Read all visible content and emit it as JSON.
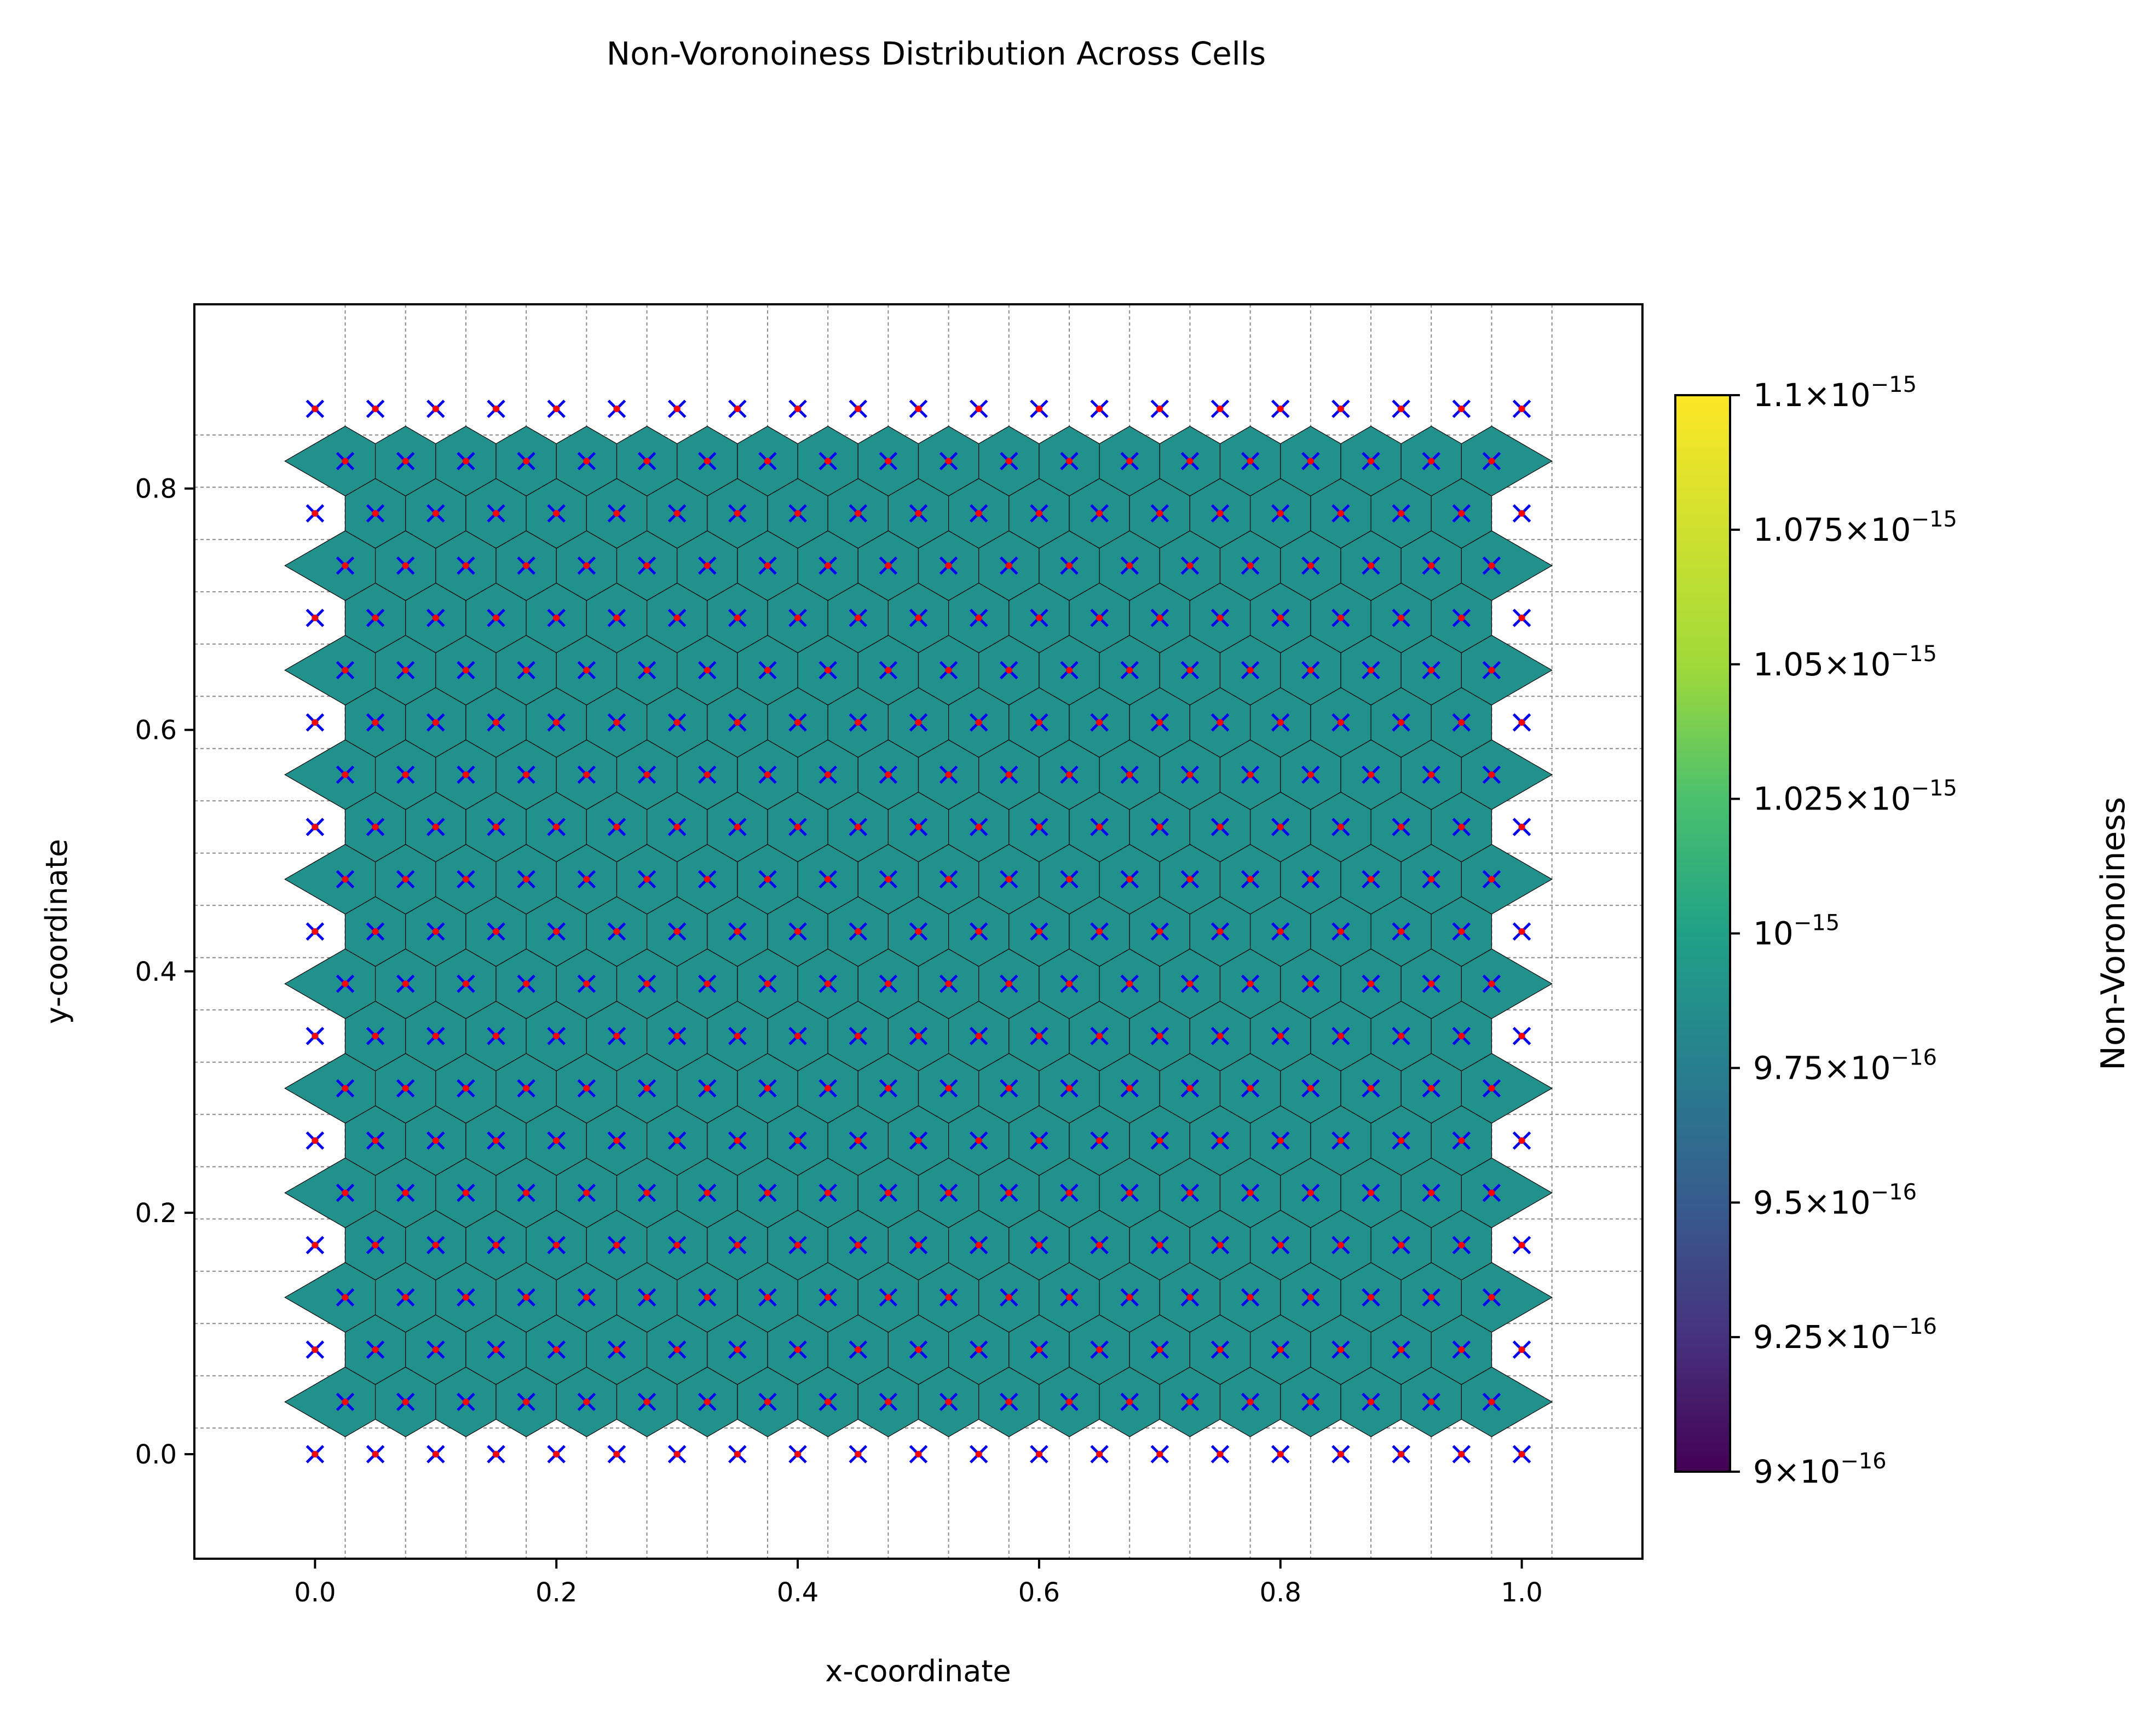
{
  "chart_data": {
    "type": "heatmap",
    "title": "Non-Voronoiness Distribution Across Cells",
    "xlabel": "x-coordinate",
    "ylabel": "y-coordinate",
    "xlim": [
      -0.1,
      1.1
    ],
    "ylim": [
      -0.0866,
      0.9526
    ],
    "xticks": [
      0.0,
      0.2,
      0.4,
      0.6,
      0.8,
      1.0
    ],
    "xtick_labels": [
      "0.0",
      "0.2",
      "0.4",
      "0.6",
      "0.8",
      "1.0"
    ],
    "yticks": [
      0.0,
      0.2,
      0.4,
      0.6,
      0.8
    ],
    "ytick_labels": [
      "0.0",
      "0.2",
      "0.4",
      "0.6",
      "0.8"
    ],
    "grid": "dashed",
    "lattice": {
      "kind": "triangular",
      "spacing": 0.05,
      "row_spacing": 0.0433,
      "rows": 21,
      "even_row_x_start": 0.0,
      "even_row_count": 21,
      "odd_row_x_start": 0.025,
      "odd_row_count": 20
    },
    "cell_value": 1e-15,
    "cell_color": "#21918c",
    "point_colors": {
      "x_marker": "#0000ff",
      "dot_marker": "#ff0000"
    },
    "colorbar": {
      "label": "Non-Voronoiness",
      "range": [
        9e-16,
        1.1e-15
      ],
      "colormap": "viridis",
      "ticks": [
        {
          "value": 1.1e-15,
          "mant": "1.1",
          "exp": "−15"
        },
        {
          "value": 1.075e-15,
          "mant": "1.075",
          "exp": "−15"
        },
        {
          "value": 1.05e-15,
          "mant": "1.05",
          "exp": "−15"
        },
        {
          "value": 1.025e-15,
          "mant": "1.025",
          "exp": "−15"
        },
        {
          "value": 1e-15,
          "mant": "",
          "exp": "−15"
        },
        {
          "value": 9.75e-16,
          "mant": "9.75",
          "exp": "−16"
        },
        {
          "value": 9.5e-16,
          "mant": "9.5",
          "exp": "−16"
        },
        {
          "value": 9.25e-16,
          "mant": "9.25",
          "exp": "−16"
        },
        {
          "value": 9e-16,
          "mant": "9",
          "exp": "−16"
        }
      ]
    }
  }
}
